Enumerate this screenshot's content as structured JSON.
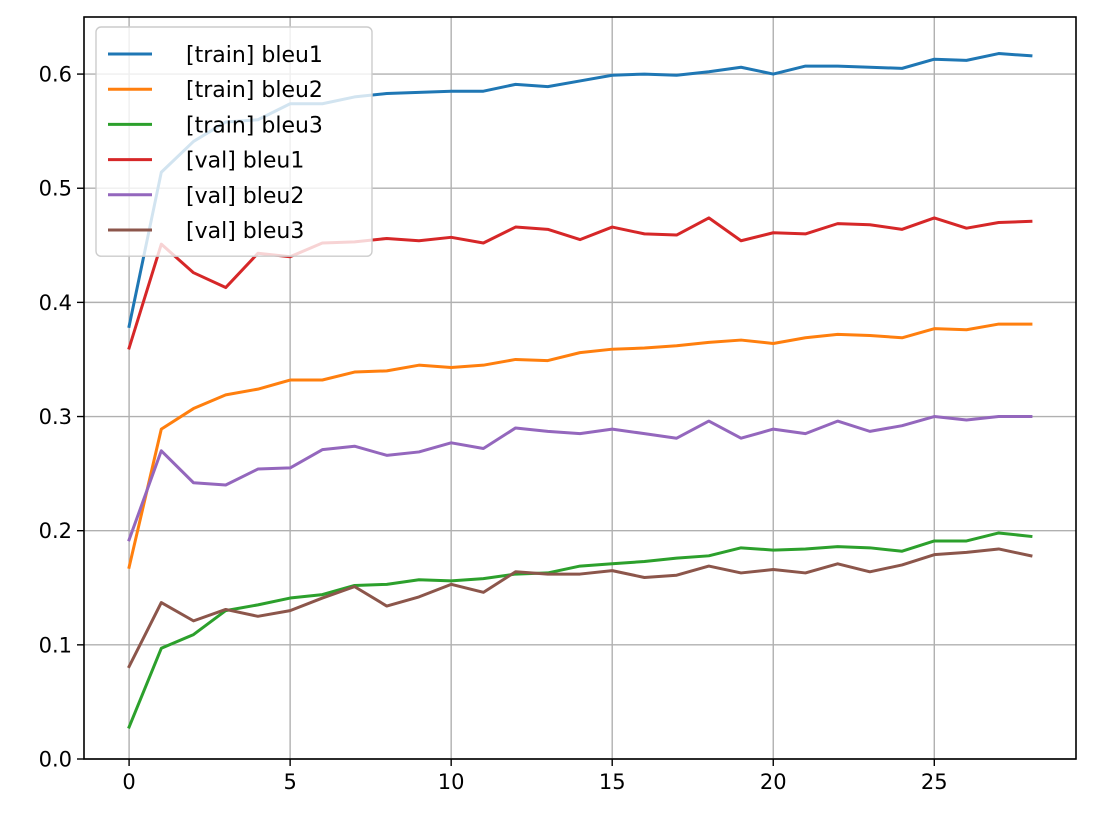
{
  "chart_data": {
    "type": "line",
    "title": "",
    "xlabel": "",
    "ylabel": "",
    "xlim": [
      -1.4,
      29.4
    ],
    "ylim": [
      0.0,
      0.65
    ],
    "x_ticks": [
      0,
      5,
      10,
      15,
      20,
      25
    ],
    "y_ticks": [
      0.0,
      0.1,
      0.2,
      0.3,
      0.4,
      0.5,
      0.6
    ],
    "grid": true,
    "legend_position": "top-left",
    "x": [
      0,
      1,
      2,
      3,
      4,
      5,
      6,
      7,
      8,
      9,
      10,
      11,
      12,
      13,
      14,
      15,
      16,
      17,
      18,
      19,
      20,
      21,
      22,
      23,
      24,
      25,
      26,
      27,
      28
    ],
    "series": [
      {
        "name": "[train] bleu1",
        "color": "#1f77b4",
        "values": [
          0.379,
          0.514,
          0.541,
          0.558,
          0.56,
          0.574,
          0.574,
          0.58,
          0.583,
          0.584,
          0.585,
          0.585,
          0.591,
          0.589,
          0.594,
          0.599,
          0.6,
          0.599,
          0.602,
          0.606,
          0.6,
          0.607,
          0.607,
          0.606,
          0.605,
          0.613,
          0.612,
          0.618,
          0.616
        ]
      },
      {
        "name": "[train] bleu2",
        "color": "#ff7f0e",
        "values": [
          0.168,
          0.289,
          0.307,
          0.319,
          0.324,
          0.332,
          0.332,
          0.339,
          0.34,
          0.345,
          0.343,
          0.345,
          0.35,
          0.349,
          0.356,
          0.359,
          0.36,
          0.362,
          0.365,
          0.367,
          0.364,
          0.369,
          0.372,
          0.371,
          0.369,
          0.377,
          0.376,
          0.381,
          0.381
        ]
      },
      {
        "name": "[train] bleu3",
        "color": "#2ca02c",
        "values": [
          0.028,
          0.097,
          0.109,
          0.13,
          0.135,
          0.141,
          0.144,
          0.152,
          0.153,
          0.157,
          0.156,
          0.158,
          0.162,
          0.163,
          0.169,
          0.171,
          0.173,
          0.176,
          0.178,
          0.185,
          0.183,
          0.184,
          0.186,
          0.185,
          0.182,
          0.191,
          0.191,
          0.198,
          0.195
        ]
      },
      {
        "name": "[val] bleu1",
        "color": "#d62728",
        "values": [
          0.36,
          0.451,
          0.426,
          0.413,
          0.443,
          0.44,
          0.452,
          0.453,
          0.456,
          0.454,
          0.457,
          0.452,
          0.466,
          0.464,
          0.455,
          0.466,
          0.46,
          0.459,
          0.474,
          0.454,
          0.461,
          0.46,
          0.469,
          0.468,
          0.464,
          0.474,
          0.465,
          0.47,
          0.471
        ]
      },
      {
        "name": "[val] bleu2",
        "color": "#9467bd",
        "values": [
          0.192,
          0.27,
          0.242,
          0.24,
          0.254,
          0.255,
          0.271,
          0.274,
          0.266,
          0.269,
          0.277,
          0.272,
          0.29,
          0.287,
          0.285,
          0.289,
          0.285,
          0.281,
          0.296,
          0.281,
          0.289,
          0.285,
          0.296,
          0.287,
          0.292,
          0.3,
          0.297,
          0.3,
          0.3
        ]
      },
      {
        "name": "[val] bleu3",
        "color": "#8c564b",
        "values": [
          0.081,
          0.137,
          0.121,
          0.131,
          0.125,
          0.13,
          0.141,
          0.151,
          0.134,
          0.142,
          0.153,
          0.146,
          0.164,
          0.162,
          0.162,
          0.165,
          0.159,
          0.161,
          0.169,
          0.163,
          0.166,
          0.163,
          0.171,
          0.164,
          0.17,
          0.179,
          0.181,
          0.184,
          0.178
        ]
      }
    ]
  }
}
